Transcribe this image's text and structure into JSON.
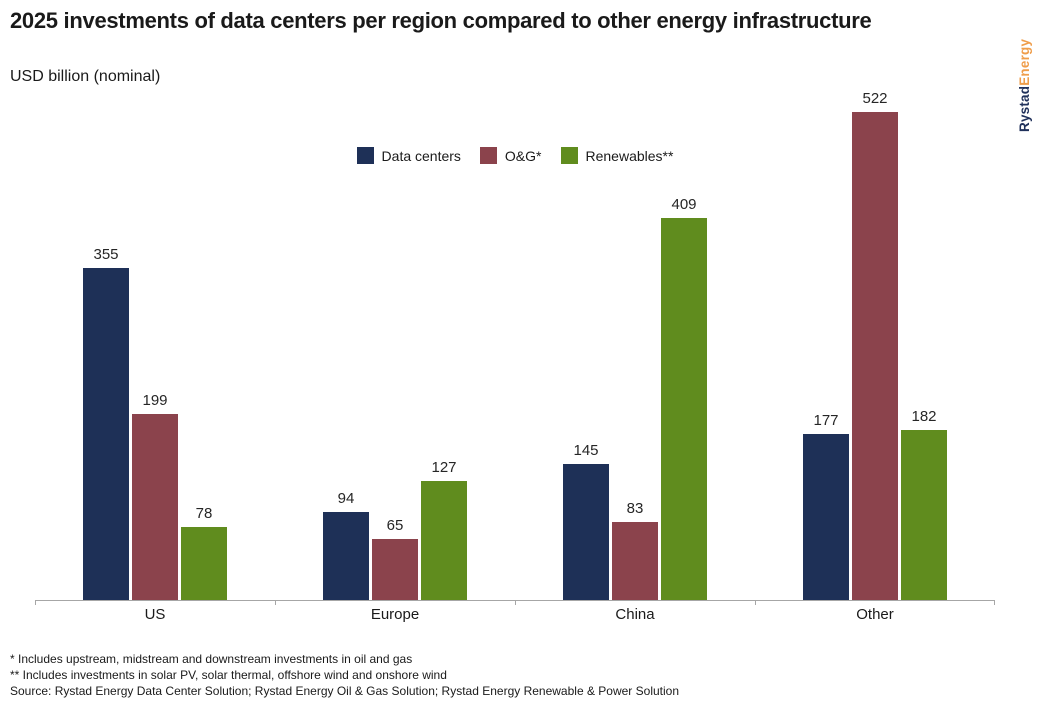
{
  "header": {
    "title": "2025 investments of data centers per region compared to other energy infrastructure",
    "subtitle": "USD billion (nominal)"
  },
  "logo": {
    "part1": "Rystad",
    "part2": "Energy",
    "part1_color": "#20315b",
    "part2_color": "#ef9d4a"
  },
  "chart_data": {
    "type": "bar",
    "title": "2025 investments of data centers per region compared to other energy infrastructure",
    "subtitle": "USD billion (nominal)",
    "categories": [
      "US",
      "Europe",
      "China",
      "Other"
    ],
    "series": [
      {
        "name": "Data centers",
        "color": "#1e3057",
        "values": [
          355,
          94,
          145,
          177
        ]
      },
      {
        "name": "O&G*",
        "color": "#8b434c",
        "values": [
          199,
          65,
          83,
          522
        ]
      },
      {
        "name": "Renewables**",
        "color": "#608c1e",
        "values": [
          78,
          127,
          409,
          182
        ]
      }
    ],
    "value_labels": true,
    "ylim": [
      0,
      540
    ],
    "grid": false,
    "legend_position": "top-center",
    "axis_color": "#a6a6a6"
  },
  "footnotes": [
    "* Includes upstream, midstream and downstream investments in oil and gas",
    "** Includes investments in solar PV, solar thermal, offshore wind and onshore wind",
    "Source: Rystad Energy Data Center Solution; Rystad Energy Oil & Gas Solution; Rystad Energy Renewable & Power Solution"
  ]
}
